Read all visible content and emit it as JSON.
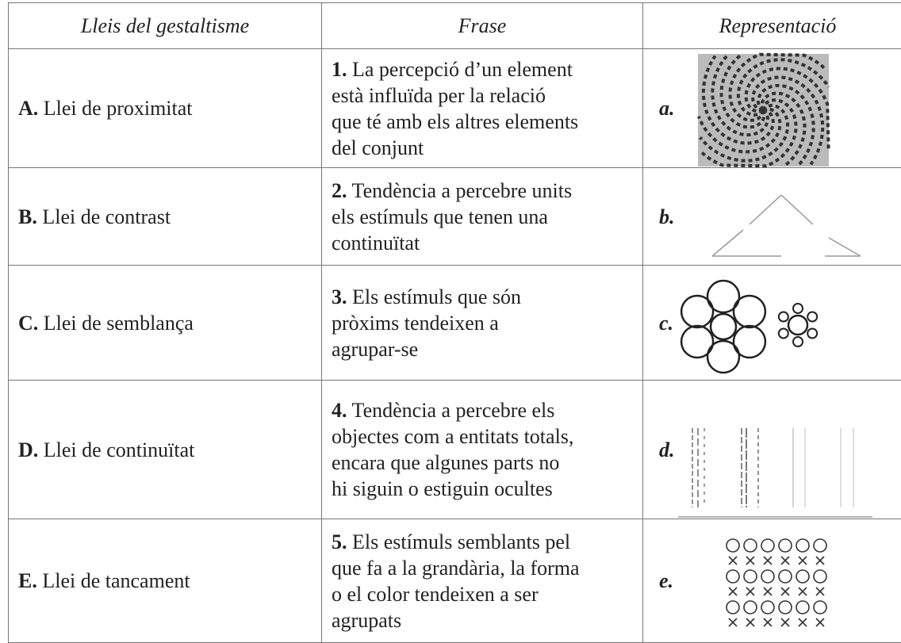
{
  "table": {
    "headers": [
      "Lleis del gestaltisme",
      "Frase",
      "Representació"
    ],
    "rows": [
      {
        "law_letter": "A.",
        "law": "Llei de proximitat",
        "phrase_number": "1.",
        "phrase_lines": [
          " La percepció d’un element",
          "està influïda per la relació",
          "que té amb els altres elements",
          "del conjunt"
        ],
        "rep_letter": "a."
      },
      {
        "law_letter": "B.",
        "law": "Llei de contrast",
        "phrase_number": "2.",
        "phrase_lines": [
          " Tendència a percebre units",
          "els estímuls que tenen una",
          "continuïtat"
        ],
        "rep_letter": "b."
      },
      {
        "law_letter": "C.",
        "law": "Llei de semblança",
        "phrase_number": "3.",
        "phrase_lines": [
          " Els estímuls que són",
          "pròxims tendeixen a",
          "agrupar-se"
        ],
        "rep_letter": "c."
      },
      {
        "law_letter": "D.",
        "law": "Llei de continuïtat",
        "phrase_number": "4.",
        "phrase_lines": [
          " Tendència a percebre els",
          "objectes com a entitats totals,",
          "encara que algunes parts no",
          "hi siguin o estiguin ocultes"
        ],
        "rep_letter": "d."
      },
      {
        "law_letter": "E.",
        "law": "Llei de tancament",
        "phrase_number": "5.",
        "phrase_lines": [
          " Els estímuls semblants pel",
          "que fa a la grandària, la forma",
          "o el color tendeixen a ser",
          "agrupats"
        ],
        "rep_letter": "e."
      }
    ]
  }
}
